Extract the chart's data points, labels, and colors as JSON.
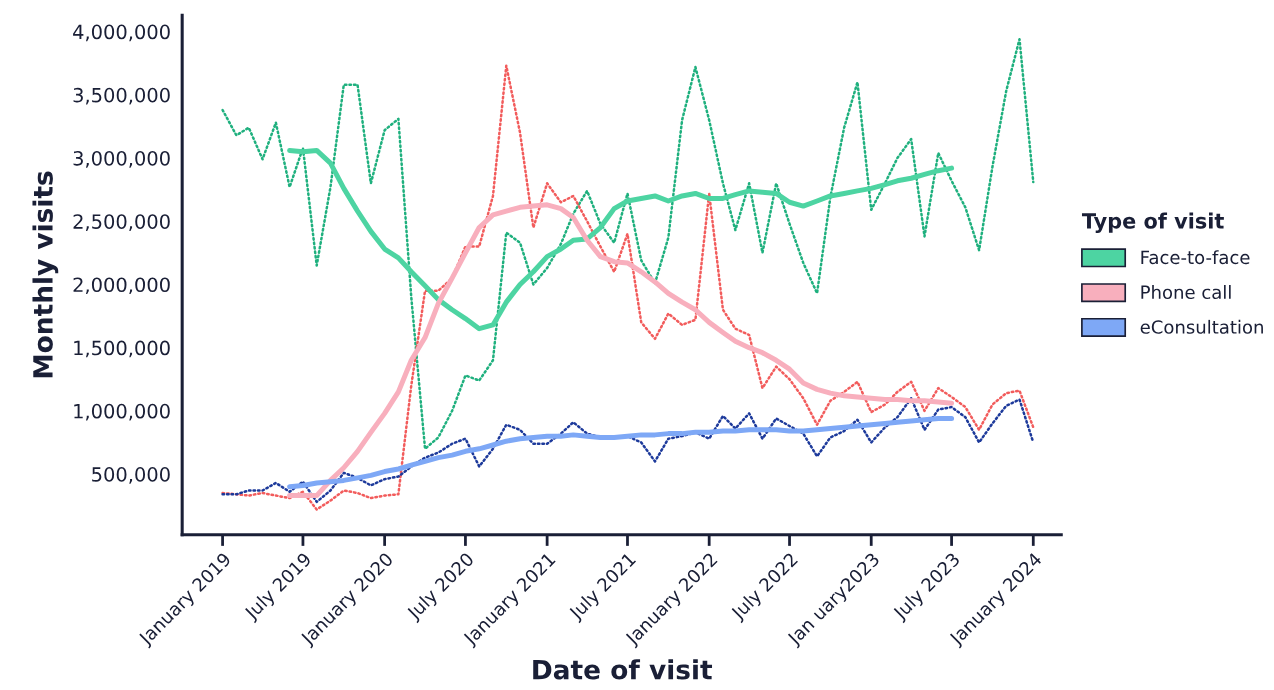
{
  "chart_data": {
    "type": "line",
    "xlabel": "Date of visit",
    "ylabel": "Monthly visits",
    "legend_title": "Type of visit",
    "legend": "right",
    "x": [
      "2019-01",
      "2019-02",
      "2019-03",
      "2019-04",
      "2019-05",
      "2019-06",
      "2019-07",
      "2019-08",
      "2019-09",
      "2019-10",
      "2019-11",
      "2019-12",
      "2020-01",
      "2020-02",
      "2020-03",
      "2020-04",
      "2020-05",
      "2020-06",
      "2020-07",
      "2020-08",
      "2020-09",
      "2020-10",
      "2020-11",
      "2020-12",
      "2021-01",
      "2021-02",
      "2021-03",
      "2021-04",
      "2021-05",
      "2021-06",
      "2021-07",
      "2021-08",
      "2021-09",
      "2021-10",
      "2021-11",
      "2021-12",
      "2022-01",
      "2022-02",
      "2022-03",
      "2022-04",
      "2022-05",
      "2022-06",
      "2022-07",
      "2022-08",
      "2022-09",
      "2022-10",
      "2022-11",
      "2022-12",
      "2023-01",
      "2023-02",
      "2023-03",
      "2023-04",
      "2023-05",
      "2023-06",
      "2023-07",
      "2023-08",
      "2023-09",
      "2023-10",
      "2023-11",
      "2023-12",
      "2024-01"
    ],
    "xlim": [
      "2018-10-02",
      "2024-03-04"
    ],
    "xticks": [
      {
        "value": "2019-01",
        "label": "January 2019"
      },
      {
        "value": "2019-07",
        "label": "July 2019"
      },
      {
        "value": "2020-01",
        "label": "January 2020"
      },
      {
        "value": "2020-07",
        "label": "July 2020"
      },
      {
        "value": "2021-01",
        "label": "January 2021"
      },
      {
        "value": "2021-07",
        "label": "July 2021"
      },
      {
        "value": "2022-01",
        "label": "January 2022"
      },
      {
        "value": "2022-07",
        "label": "July 2022"
      },
      {
        "value": "2023-01",
        "label": "Jan uary2023"
      },
      {
        "value": "2023-07",
        "label": "July 2023"
      },
      {
        "value": "2024-01",
        "label": "January 2024"
      }
    ],
    "ylim": [
      20000,
      4130000
    ],
    "yticks": [
      {
        "value": 500000,
        "label": "500,000"
      },
      {
        "value": 1000000,
        "label": "1,000,000"
      },
      {
        "value": 1500000,
        "label": "1,500,000"
      },
      {
        "value": 2000000,
        "label": "2,000,000"
      },
      {
        "value": 2500000,
        "label": "2,500,000"
      },
      {
        "value": 3000000,
        "label": "3,000,000"
      },
      {
        "value": 3500000,
        "label": "3,500,000"
      },
      {
        "value": 4000000,
        "label": "4,000,000"
      }
    ],
    "series": [
      {
        "line_style": "dotted",
        "color": "#1fb07e",
        "values": [
          3380000,
          3180000,
          3240000,
          2990000,
          3280000,
          2770000,
          3080000,
          2150000,
          2770000,
          3580000,
          3580000,
          2800000,
          3220000,
          3310000,
          1900000,
          700000,
          790000,
          1000000,
          1280000,
          1240000,
          1400000,
          2410000,
          2330000,
          2000000,
          2130000,
          2320000,
          2560000,
          2740000,
          2480000,
          2330000,
          2720000,
          2190000,
          2010000,
          2370000,
          3300000,
          3720000,
          3300000,
          2800000,
          2430000,
          2800000,
          2250000,
          2800000,
          2480000,
          2170000,
          1930000,
          2690000,
          3240000,
          3600000,
          2590000,
          2800000,
          3000000,
          3150000,
          2380000,
          3040000,
          2820000,
          2610000,
          2270000,
          2930000,
          3530000,
          3940000,
          2810000
        ]
      },
      {
        "line_style": "dotted",
        "color": "#f25c5c",
        "values": [
          350000,
          340000,
          330000,
          350000,
          330000,
          310000,
          360000,
          220000,
          290000,
          370000,
          350000,
          310000,
          330000,
          340000,
          1200000,
          1950000,
          1950000,
          2050000,
          2300000,
          2300000,
          2700000,
          3730000,
          3200000,
          2450000,
          2800000,
          2650000,
          2700000,
          2500000,
          2300000,
          2100000,
          2400000,
          1700000,
          1570000,
          1770000,
          1680000,
          1720000,
          2720000,
          1800000,
          1650000,
          1600000,
          1180000,
          1350000,
          1250000,
          1100000,
          890000,
          1080000,
          1150000,
          1230000,
          990000,
          1050000,
          1150000,
          1230000,
          1000000,
          1180000,
          1110000,
          1030000,
          850000,
          1050000,
          1140000,
          1160000,
          870000
        ]
      },
      {
        "line_style": "dotted",
        "color": "#1d3a9b",
        "values": [
          340000,
          340000,
          370000,
          370000,
          430000,
          360000,
          440000,
          280000,
          370000,
          510000,
          470000,
          410000,
          460000,
          480000,
          560000,
          630000,
          670000,
          740000,
          780000,
          560000,
          700000,
          890000,
          850000,
          740000,
          740000,
          820000,
          910000,
          820000,
          790000,
          800000,
          800000,
          750000,
          600000,
          780000,
          800000,
          830000,
          780000,
          960000,
          860000,
          980000,
          780000,
          940000,
          880000,
          820000,
          640000,
          790000,
          840000,
          930000,
          750000,
          870000,
          950000,
          1100000,
          850000,
          1010000,
          1030000,
          950000,
          750000,
          900000,
          1040000,
          1090000,
          750000
        ]
      },
      {
        "line_style": "solid",
        "name": "Face-to-face",
        "color": "#4dd4a2",
        "values": [
          null,
          null,
          null,
          null,
          null,
          3060000,
          3050000,
          3060000,
          2960000,
          2760000,
          2580000,
          2420000,
          2280000,
          2210000,
          2100000,
          1990000,
          1880000,
          1800000,
          1730000,
          1650000,
          1680000,
          1860000,
          2000000,
          2100000,
          2220000,
          2280000,
          2350000,
          2360000,
          2450000,
          2600000,
          2660000,
          2680000,
          2700000,
          2660000,
          2700000,
          2720000,
          2680000,
          2680000,
          2710000,
          2740000,
          2730000,
          2720000,
          2650000,
          2620000,
          2660000,
          2700000,
          2720000,
          2740000,
          2760000,
          2790000,
          2820000,
          2840000,
          2870000,
          2900000,
          2920000,
          null,
          null,
          null,
          null,
          null,
          null
        ]
      },
      {
        "line_style": "solid",
        "name": "Phone call",
        "color": "#f8afbd",
        "values": [
          null,
          null,
          null,
          null,
          null,
          330000,
          330000,
          330000,
          450000,
          550000,
          680000,
          830000,
          980000,
          1150000,
          1400000,
          1580000,
          1850000,
          2050000,
          2250000,
          2450000,
          2550000,
          2580000,
          2610000,
          2620000,
          2630000,
          2600000,
          2530000,
          2350000,
          2220000,
          2180000,
          2170000,
          2100000,
          2020000,
          1930000,
          1860000,
          1800000,
          1700000,
          1620000,
          1550000,
          1500000,
          1460000,
          1400000,
          1330000,
          1220000,
          1170000,
          1140000,
          1120000,
          1110000,
          1100000,
          1090000,
          1090000,
          1080000,
          1080000,
          1070000,
          1060000,
          null,
          null,
          null,
          null,
          null,
          null
        ]
      },
      {
        "line_style": "solid",
        "name": "eConsultation",
        "color": "#7ea8f6",
        "values": [
          null,
          null,
          null,
          null,
          null,
          400000,
          410000,
          430000,
          440000,
          450000,
          470000,
          490000,
          520000,
          540000,
          570000,
          600000,
          630000,
          650000,
          680000,
          700000,
          730000,
          760000,
          780000,
          790000,
          800000,
          800000,
          810000,
          800000,
          790000,
          790000,
          800000,
          810000,
          810000,
          820000,
          820000,
          830000,
          830000,
          840000,
          840000,
          850000,
          850000,
          850000,
          840000,
          840000,
          850000,
          860000,
          870000,
          880000,
          890000,
          900000,
          910000,
          920000,
          930000,
          940000,
          940000,
          null,
          null,
          null,
          null,
          null,
          null
        ]
      }
    ]
  }
}
